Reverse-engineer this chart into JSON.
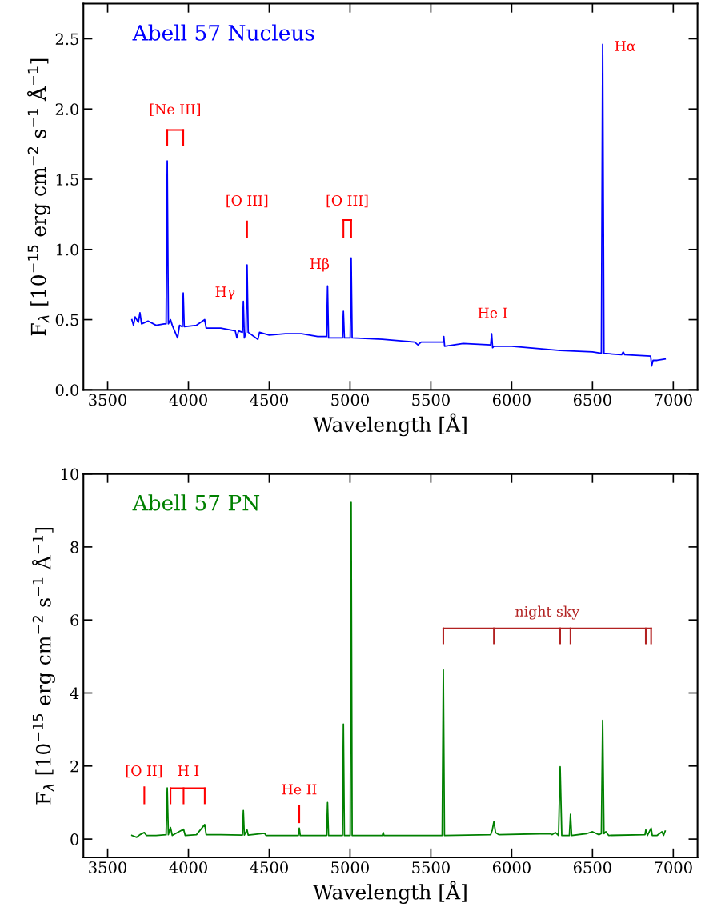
{
  "chart_data": [
    {
      "type": "line",
      "title": "Abell 57 Nucleus",
      "xlabel": "Wavelength [Å]",
      "ylabel": "F$_{λ}$ [10$^{−15}$ erg cm$^{−2}$ s$^{−1}$ Å$^{−1}$]",
      "xlim": [
        3350,
        7150
      ],
      "xticks": [
        3500,
        4000,
        4500,
        5000,
        5500,
        6000,
        6500,
        7000
      ],
      "ylim": [
        0,
        2.75
      ],
      "yticks": [
        {
          "value": 0,
          "label": "0.0"
        },
        0.5,
        {
          "value": 1,
          "label": "1.0"
        },
        1.5,
        {
          "value": 2,
          "label": "2.0"
        },
        2.5
      ],
      "grid": false,
      "legend": false,
      "marker": "none",
      "line_style": "solid",
      "series": [
        {
          "color": "#0000ff",
          "x": [
            3650,
            3660,
            3670,
            3690,
            3700,
            3710,
            3750,
            3800,
            3850,
            3862,
            3869,
            3876,
            3889,
            3900,
            3933,
            3945,
            3962,
            3968,
            3974,
            4050,
            4101,
            4110,
            4200,
            4290,
            4300,
            4310,
            4334,
            4340,
            4346,
            4356,
            4363,
            4370,
            4430,
            4440,
            4500,
            4600,
            4700,
            4800,
            4855,
            4861,
            4867,
            4953,
            4959,
            4965,
            5001,
            5007,
            5013,
            5200,
            5400,
            5420,
            5440,
            5577,
            5580,
            5585,
            5700,
            5870,
            5876,
            5882,
            5890,
            6000,
            6200,
            6300,
            6500,
            6555,
            6563,
            6571,
            6680,
            6690,
            6700,
            6860,
            6866,
            6875,
            6900,
            6950
          ],
          "values": [
            0.5,
            0.46,
            0.52,
            0.48,
            0.55,
            0.47,
            0.49,
            0.46,
            0.47,
            0.47,
            1.63,
            0.47,
            0.5,
            0.46,
            0.37,
            0.46,
            0.45,
            0.69,
            0.45,
            0.46,
            0.5,
            0.44,
            0.44,
            0.42,
            0.37,
            0.42,
            0.41,
            0.63,
            0.37,
            0.41,
            0.89,
            0.41,
            0.36,
            0.41,
            0.39,
            0.4,
            0.4,
            0.38,
            0.38,
            0.74,
            0.37,
            0.37,
            0.56,
            0.37,
            0.37,
            0.94,
            0.37,
            0.36,
            0.34,
            0.32,
            0.34,
            0.34,
            0.38,
            0.31,
            0.33,
            0.32,
            0.4,
            0.3,
            0.31,
            0.31,
            0.29,
            0.28,
            0.27,
            0.26,
            2.46,
            0.26,
            0.25,
            0.27,
            0.25,
            0.24,
            0.17,
            0.21,
            0.21,
            0.22
          ]
        }
      ],
      "annotations": [
        "[Ne III]",
        "[O III]",
        "[O III]",
        "Hγ",
        "Hβ",
        "He I",
        "Hα"
      ]
    },
    {
      "type": "line",
      "title": "Abell 57 PN",
      "xlabel": "Wavelength [Å]",
      "ylabel": "F$_{λ}$ [10$^{−15}$ erg cm$^{−2}$ s$^{−1}$ Å$^{−1}$]",
      "xlim": [
        3350,
        7150
      ],
      "xticks": [
        3500,
        4000,
        4500,
        5000,
        5500,
        6000,
        6500,
        7000
      ],
      "ylim": [
        -0.5,
        10
      ],
      "yticks": [
        0,
        2,
        4,
        6,
        8,
        10
      ],
      "grid": false,
      "legend": false,
      "marker": "none",
      "line_style": "solid",
      "series": [
        {
          "color": "#008000",
          "x": [
            3650,
            3680,
            3700,
            3727,
            3740,
            3800,
            3862,
            3869,
            3876,
            3889,
            3900,
            3970,
            3980,
            4050,
            4101,
            4110,
            4200,
            4334,
            4340,
            4346,
            4363,
            4370,
            4471,
            4480,
            4680,
            4686,
            4692,
            4855,
            4861,
            4867,
            4953,
            4959,
            4965,
            5001,
            5007,
            5013,
            5200,
            5205,
            5210,
            5570,
            5577,
            5584,
            5870,
            5880,
            5890,
            5900,
            5920,
            6240,
            6250,
            6270,
            6290,
            6300,
            6310,
            6357,
            6364,
            6371,
            6465,
            6500,
            6540,
            6555,
            6563,
            6571,
            6583,
            6600,
            6825,
            6830,
            6840,
            6863,
            6870,
            6900,
            6930,
            6940,
            6950
          ],
          "values": [
            0.1,
            0.05,
            0.12,
            0.18,
            0.1,
            0.1,
            0.12,
            1.4,
            0.12,
            0.32,
            0.1,
            0.27,
            0.1,
            0.12,
            0.4,
            0.12,
            0.12,
            0.11,
            0.78,
            0.11,
            0.25,
            0.11,
            0.16,
            0.1,
            0.1,
            0.3,
            0.1,
            0.1,
            1.0,
            0.1,
            0.1,
            3.15,
            0.1,
            0.1,
            9.22,
            0.1,
            0.1,
            0.18,
            0.1,
            0.1,
            4.63,
            0.1,
            0.12,
            0.25,
            0.48,
            0.18,
            0.12,
            0.15,
            0.12,
            0.18,
            0.1,
            1.98,
            0.1,
            0.1,
            0.68,
            0.1,
            0.15,
            0.2,
            0.12,
            0.15,
            3.25,
            0.15,
            0.2,
            0.1,
            0.12,
            0.25,
            0.1,
            0.3,
            0.1,
            0.1,
            0.2,
            0.1,
            0.22
          ]
        }
      ],
      "annotations": [
        "[O II]",
        "H I",
        "He II",
        "night sky"
      ]
    }
  ]
}
